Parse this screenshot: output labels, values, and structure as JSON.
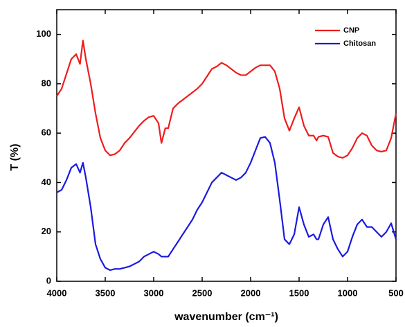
{
  "chart_data": {
    "type": "line",
    "x_label": "wavenumber (cm⁻¹)",
    "y_label": "T (%)",
    "x": [
      4000,
      3950,
      3900,
      3850,
      3800,
      3760,
      3730,
      3700,
      3650,
      3600,
      3550,
      3500,
      3450,
      3400,
      3350,
      3300,
      3250,
      3200,
      3150,
      3100,
      3050,
      3000,
      2950,
      2920,
      2880,
      2850,
      2800,
      2750,
      2700,
      2650,
      2600,
      2550,
      2500,
      2450,
      2400,
      2350,
      2300,
      2250,
      2200,
      2150,
      2100,
      2050,
      2000,
      1950,
      1900,
      1850,
      1800,
      1750,
      1700,
      1650,
      1600,
      1550,
      1500,
      1450,
      1400,
      1350,
      1320,
      1300,
      1250,
      1200,
      1150,
      1100,
      1050,
      1000,
      950,
      900,
      850,
      800,
      750,
      700,
      650,
      600,
      550,
      500
    ],
    "series": [
      {
        "name": "CNP",
        "color": "#ee1c1c",
        "values": [
          75,
          78,
          84,
          90,
          92,
          88,
          97.5,
          90,
          80,
          68,
          58,
          53,
          51,
          51.5,
          53,
          56,
          58,
          60.5,
          63,
          65,
          66.5,
          67,
          64,
          56,
          62,
          62,
          70,
          72,
          73.5,
          75,
          76.5,
          78,
          80,
          83,
          86,
          87,
          88.5,
          87.5,
          86,
          84.5,
          83.5,
          83.5,
          85,
          86.5,
          87.5,
          87.5,
          87.5,
          85,
          78,
          66,
          61,
          66,
          70.5,
          63,
          59,
          59,
          57,
          58.5,
          59,
          58.5,
          52,
          50.5,
          50,
          51,
          54,
          58,
          60,
          59,
          55,
          53,
          52.5,
          53,
          58,
          68
        ]
      },
      {
        "name": "Chitosan",
        "color": "#1a1ae0",
        "values": [
          36,
          37,
          41,
          46,
          47.5,
          44,
          48,
          42,
          30,
          15,
          9,
          5.5,
          4.5,
          5,
          5,
          5.5,
          6,
          7,
          8,
          10,
          11,
          12,
          11,
          10,
          10,
          10,
          13,
          16,
          19,
          22,
          25,
          29,
          32,
          36,
          40,
          42,
          44,
          43,
          42,
          41,
          42,
          44,
          48,
          53,
          58,
          58.5,
          56,
          48,
          33,
          17,
          15,
          19,
          30,
          23,
          18,
          19,
          17,
          17,
          23,
          26,
          17,
          13,
          10,
          12,
          18,
          23,
          25,
          22,
          22,
          20,
          18,
          20,
          23.5,
          17
        ]
      }
    ],
    "xlim": [
      4000,
      500
    ],
    "xticks": [
      4000,
      3500,
      3000,
      2500,
      2000,
      1500,
      1000,
      500
    ],
    "ylim": [
      0,
      110
    ],
    "yticks": [
      0,
      20,
      40,
      60,
      80,
      100
    ],
    "legend": "upper right"
  }
}
